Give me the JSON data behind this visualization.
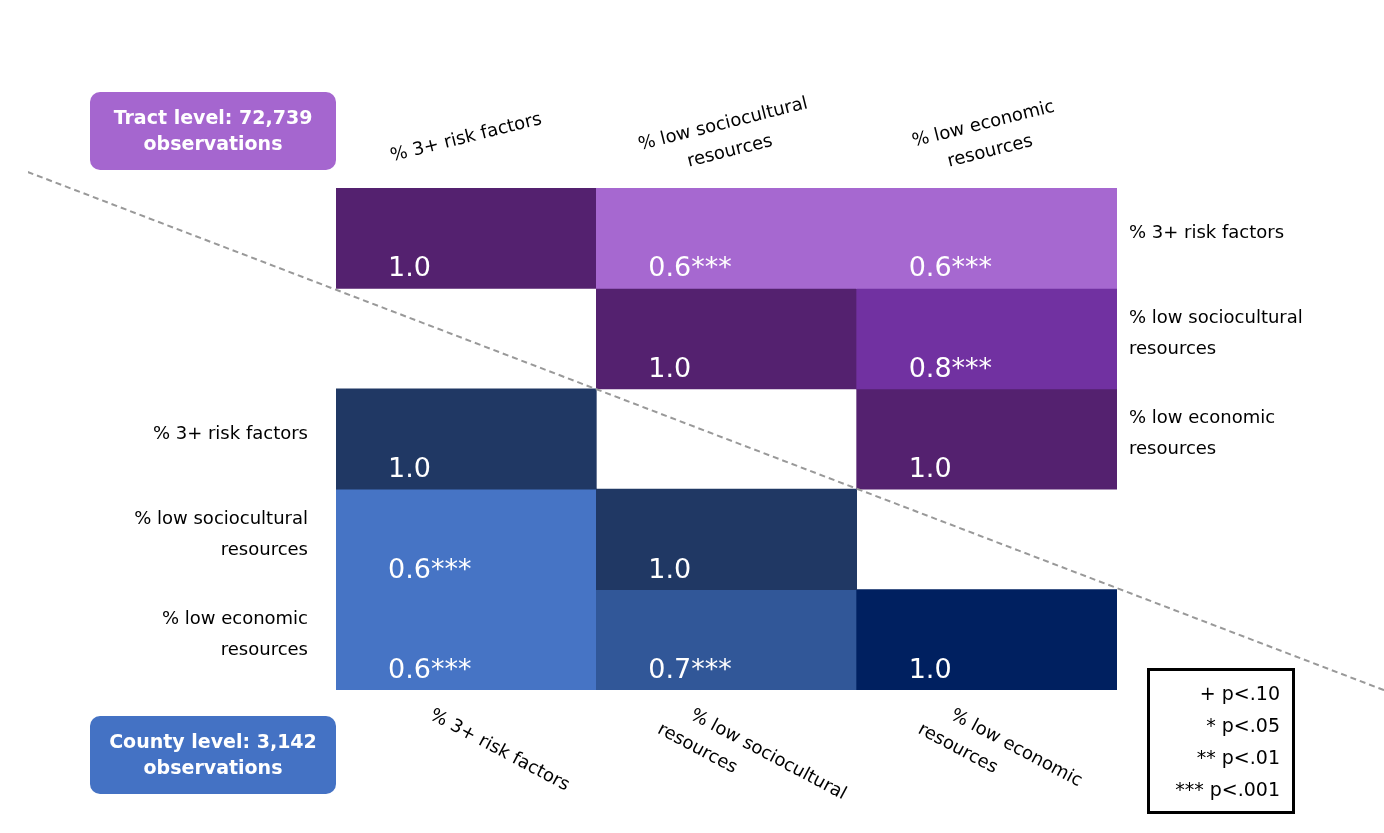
{
  "chart_data": {
    "type": "heatmap",
    "categories": [
      "% 3+ risk factors",
      "% low sociocultural resources",
      "% low economic resources"
    ],
    "y_categories": [
      null,
      null,
      "% 3+ risk factors",
      "% low sociocultural resources",
      "% low economic resources"
    ],
    "y2_categories": [
      "% 3+ risk factors",
      "% low sociocultural resources",
      "% low economic resources",
      null,
      null
    ],
    "cells": [
      [
        1.0,
        0.6,
        0.6
      ],
      [
        null,
        1.0,
        0.8
      ],
      [
        1.0,
        null,
        1.0
      ],
      [
        0.6,
        1.0,
        null
      ],
      [
        0.6,
        0.7,
        1.0
      ]
    ],
    "cell_labels": [
      [
        "1.0",
        "0.6***",
        "0.6***"
      ],
      [
        null,
        "1.0",
        "0.8***"
      ],
      [
        "1.0",
        null,
        "1.0"
      ],
      [
        "0.6***",
        "1.0",
        null
      ],
      [
        "0.6***",
        "0.7***",
        "1.0"
      ]
    ],
    "colors": [
      [
        "#54216f",
        "#a566cf",
        "#a566cf"
      ],
      [
        null,
        "#54216f",
        "#7030a0"
      ],
      [
        "#203864",
        null,
        "#54216f"
      ],
      [
        "#4472c4",
        "#203864",
        null
      ],
      [
        "#4472c4",
        "#2f5597",
        "#002060"
      ]
    ],
    "annotations": [
      "Tract level: 72,739 observations",
      "County level: 3,142 observations",
      "+ p<.10",
      "* p<.05",
      "** p<.01",
      "*** p<.001"
    ]
  }
}
